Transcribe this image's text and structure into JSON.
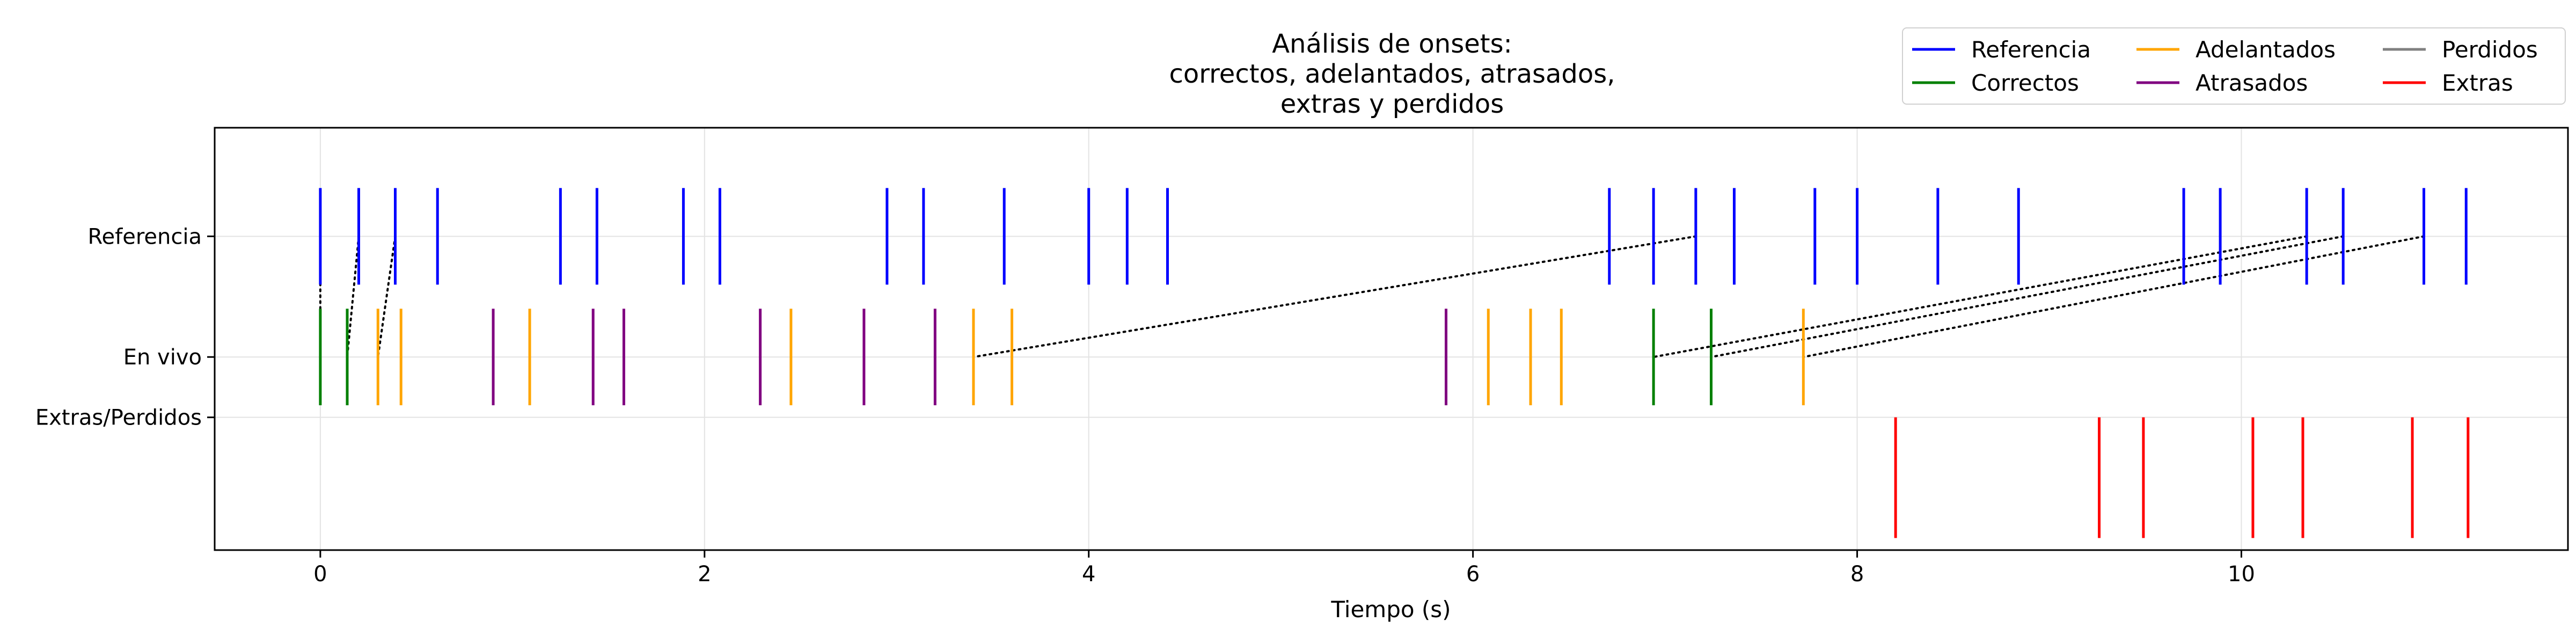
{
  "chart_data": {
    "type": "event-raster",
    "title_lines": [
      "Análisis de onsets:",
      "correctos, adelantados, atrasados,",
      "extras y perdidos"
    ],
    "xlabel": "Tiempo (s)",
    "ylabel": "",
    "xlim": [
      -0.55,
      11.7
    ],
    "xticks": [
      0,
      2,
      4,
      6,
      8,
      10
    ],
    "xtick_labels": [
      "0",
      "2",
      "4",
      "6",
      "8",
      "10"
    ],
    "yticks": [
      {
        "label": "Referencia",
        "value": 1.0
      },
      {
        "label": "En vivo",
        "value": 0.0
      },
      {
        "label": "Extras/Perdidos",
        "value": -0.5
      }
    ],
    "ylim": [
      -1.6,
      1.9
    ],
    "grid": true,
    "legend": {
      "placement": "top-right",
      "columns": 3
    },
    "series": [
      {
        "name": "Referencia",
        "color": "#0000ff",
        "y_center": 1.0,
        "half_height": 0.4,
        "x": [
          0.0,
          0.2,
          0.39,
          0.61,
          1.25,
          1.44,
          1.89,
          2.08,
          2.95,
          3.14,
          3.56,
          4.0,
          4.2,
          4.41,
          6.71,
          6.94,
          7.16,
          7.36,
          7.78,
          8.0,
          8.42,
          8.84,
          9.7,
          9.89,
          10.34,
          10.53,
          10.95,
          11.17
        ]
      },
      {
        "name": "Correctos",
        "color": "#008000",
        "y_center": 0.0,
        "half_height": 0.4,
        "x": [
          0.0,
          0.14,
          6.94,
          7.24
        ]
      },
      {
        "name": "Adelantados",
        "color": "#ffa500",
        "y_center": 0.0,
        "half_height": 0.4,
        "x": [
          0.3,
          0.42,
          1.09,
          2.45,
          3.4,
          3.6,
          6.08,
          6.3,
          6.46,
          7.72
        ]
      },
      {
        "name": "Atrasados",
        "color": "#800080",
        "y_center": 0.0,
        "half_height": 0.4,
        "x": [
          0.9,
          1.42,
          1.58,
          2.29,
          2.83,
          3.2,
          5.86
        ]
      },
      {
        "name": "Perdidos",
        "color": "#808080",
        "y_center": -0.5,
        "half_height": 0.5,
        "x": []
      },
      {
        "name": "Extras",
        "color": "#ff0000",
        "y_center": -1.0,
        "half_height": 0.5,
        "x": [
          8.2,
          9.26,
          9.49,
          10.06,
          10.32,
          10.89,
          11.18
        ]
      }
    ],
    "connections": [
      {
        "from": [
          0.0,
          1.0
        ],
        "to": [
          0.0,
          0.0
        ]
      },
      {
        "from": [
          0.2,
          1.0
        ],
        "to": [
          0.14,
          0.0
        ]
      },
      {
        "from": [
          0.39,
          1.0
        ],
        "to": [
          0.3,
          0.0
        ]
      },
      {
        "from": [
          7.16,
          1.0
        ],
        "to": [
          3.4,
          0.0
        ]
      },
      {
        "from": [
          10.34,
          1.0
        ],
        "to": [
          6.94,
          0.0
        ]
      },
      {
        "from": [
          10.53,
          1.0
        ],
        "to": [
          7.24,
          0.0
        ]
      },
      {
        "from": [
          10.95,
          1.0
        ],
        "to": [
          7.72,
          0.0
        ]
      }
    ]
  }
}
